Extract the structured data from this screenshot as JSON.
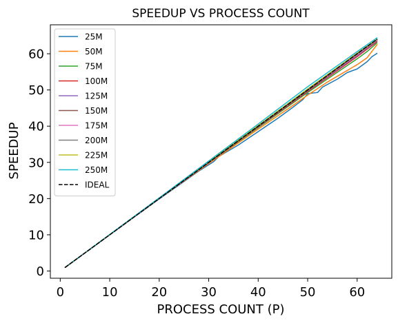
{
  "chart_data": {
    "type": "line",
    "title": "SPEEDUP VS PROCESS COUNT",
    "xlabel": "PROCESS COUNT (P)",
    "ylabel": "SPEEDUP",
    "xlim": [
      -2,
      67
    ],
    "ylim": [
      -2,
      68
    ],
    "xticks": [
      0,
      10,
      20,
      30,
      40,
      50,
      60
    ],
    "yticks": [
      0,
      10,
      20,
      30,
      40,
      50,
      60
    ],
    "grid": false,
    "legend_position": "upper-left",
    "x": [
      1,
      64
    ],
    "series": [
      {
        "name": "25M",
        "color": "#1f77b4",
        "dash": "solid",
        "points": [
          [
            1,
            1
          ],
          [
            10,
            10
          ],
          [
            20,
            19.9
          ],
          [
            28,
            27.6
          ],
          [
            31,
            30.2
          ],
          [
            32,
            31.6
          ],
          [
            36,
            34.8
          ],
          [
            40,
            38.5
          ],
          [
            44,
            42.2
          ],
          [
            47,
            45.2
          ],
          [
            49,
            47.3
          ],
          [
            50,
            49.0
          ],
          [
            52,
            49.3
          ],
          [
            53,
            50.8
          ],
          [
            56,
            53.0
          ],
          [
            58,
            54.8
          ],
          [
            60,
            55.8
          ],
          [
            62,
            57.8
          ],
          [
            63,
            59.2
          ],
          [
            64,
            60.1
          ]
        ]
      },
      {
        "name": "50M",
        "color": "#ff7f0e",
        "dash": "solid",
        "points": [
          [
            1,
            1
          ],
          [
            10,
            10
          ],
          [
            20,
            20
          ],
          [
            30,
            29.7
          ],
          [
            40,
            39.2
          ],
          [
            46,
            44.8
          ],
          [
            50,
            48.6
          ],
          [
            54,
            52.2
          ],
          [
            57,
            54.6
          ],
          [
            60,
            57.0
          ],
          [
            62,
            58.9
          ],
          [
            64,
            62.5
          ]
        ]
      },
      {
        "name": "75M",
        "color": "#2ca02c",
        "dash": "solid",
        "points": [
          [
            1,
            1
          ],
          [
            10,
            10
          ],
          [
            20,
            20
          ],
          [
            30,
            29.9
          ],
          [
            40,
            39.6
          ],
          [
            50,
            49.3
          ],
          [
            56,
            54.9
          ],
          [
            60,
            58.6
          ],
          [
            62,
            60.6
          ],
          [
            64,
            63.0
          ]
        ]
      },
      {
        "name": "100M",
        "color": "#d62728",
        "dash": "solid",
        "points": [
          [
            1,
            1
          ],
          [
            20,
            20
          ],
          [
            40,
            39.8
          ],
          [
            50,
            49.6
          ],
          [
            60,
            59.2
          ],
          [
            64,
            63.3
          ]
        ]
      },
      {
        "name": "125M",
        "color": "#9467bd",
        "dash": "solid",
        "points": [
          [
            1,
            1
          ],
          [
            20,
            20
          ],
          [
            40,
            39.9
          ],
          [
            50,
            49.8
          ],
          [
            60,
            59.5
          ],
          [
            64,
            63.5
          ]
        ]
      },
      {
        "name": "150M",
        "color": "#8c564b",
        "dash": "solid",
        "points": [
          [
            1,
            1
          ],
          [
            20,
            20
          ],
          [
            40,
            39.9
          ],
          [
            50,
            49.9
          ],
          [
            60,
            59.7
          ],
          [
            64,
            63.6
          ]
        ]
      },
      {
        "name": "175M",
        "color": "#e377c2",
        "dash": "solid",
        "points": [
          [
            1,
            1
          ],
          [
            20,
            20
          ],
          [
            40,
            40
          ],
          [
            50,
            50
          ],
          [
            60,
            59.8
          ],
          [
            64,
            63.8
          ]
        ]
      },
      {
        "name": "200M",
        "color": "#7f7f7f",
        "dash": "solid",
        "points": [
          [
            1,
            1
          ],
          [
            20,
            20
          ],
          [
            40,
            40.1
          ],
          [
            50,
            50.1
          ],
          [
            60,
            60.0
          ],
          [
            64,
            63.9
          ]
        ]
      },
      {
        "name": "225M",
        "color": "#bcbd22",
        "dash": "solid",
        "points": [
          [
            1,
            1
          ],
          [
            20,
            20.1
          ],
          [
            40,
            40.2
          ],
          [
            50,
            50.3
          ],
          [
            60,
            60.2
          ],
          [
            64,
            64.0
          ]
        ]
      },
      {
        "name": "250M",
        "color": "#17becf",
        "dash": "solid",
        "points": [
          [
            1,
            1
          ],
          [
            20,
            20.2
          ],
          [
            30,
            30.4
          ],
          [
            40,
            40.6
          ],
          [
            50,
            50.9
          ],
          [
            60,
            60.6
          ],
          [
            64,
            64.4
          ]
        ]
      },
      {
        "name": "IDEAL",
        "color": "#000000",
        "dash": "dashed",
        "points": [
          [
            1,
            1
          ],
          [
            64,
            64
          ]
        ]
      }
    ]
  }
}
